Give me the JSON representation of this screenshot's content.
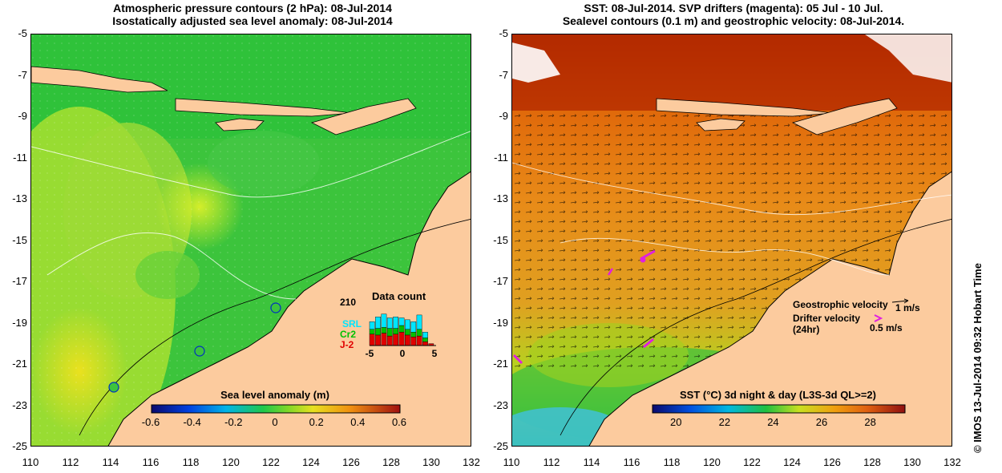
{
  "left_panel": {
    "title_line1": "Atmospheric pressure contours (2 hPa): 08-Jul-2014",
    "title_line2": "Isostatically adjusted sea level anomaly: 08-Jul-2014",
    "colorbar": {
      "label": "Sea level anomaly (m)",
      "ticks": [
        "-0.6",
        "-0.4",
        "-0.2",
        "0",
        "0.2",
        "0.4",
        "0.6"
      ],
      "range": [
        -0.6,
        0.6
      ]
    },
    "data_count": {
      "title": "Data count",
      "max_label": "210",
      "satellites": [
        {
          "name": "SRL",
          "color": "#00e5ff"
        },
        {
          "name": "Cr2",
          "color": "#00c000"
        },
        {
          "name": "J-2",
          "color": "#e00000"
        }
      ],
      "x_ticks": [
        "-5",
        "0",
        "5"
      ],
      "days": [
        -5,
        -4,
        -3,
        -2,
        -1,
        0,
        1,
        2,
        3,
        4,
        5
      ],
      "srl": [
        40,
        60,
        70,
        55,
        60,
        40,
        50,
        55,
        75,
        30,
        0
      ],
      "cr2": [
        25,
        35,
        30,
        40,
        30,
        35,
        30,
        25,
        35,
        20,
        0
      ],
      "j2": [
        60,
        55,
        65,
        50,
        60,
        70,
        55,
        45,
        50,
        20,
        10
      ]
    }
  },
  "right_panel": {
    "title_line1": "SST: 08-Jul-2014. SVP drifters (magenta): 05 Jul - 10 Jul.",
    "title_line2": "Sealevel contours (0.1 m) and geostrophic velocity: 08-Jul-2014.",
    "colorbar": {
      "label": "SST (°C) 3d night & day (L3S-3d QL>=2)",
      "ticks": [
        "20",
        "22",
        "24",
        "26",
        "28"
      ],
      "range": [
        19,
        29.4
      ]
    },
    "legend": {
      "geostrophic_label": "Geostrophic velocity",
      "geostrophic_scale": "1 m/s",
      "drifter_label": "Drifter velocity",
      "drifter_period": "(24hr)",
      "drifter_scale": "0.5 m/s"
    },
    "credit": "© IMOS 13-Jul-2014 09:32 Hobart Time"
  },
  "axes": {
    "lon_ticks": [
      "110",
      "112",
      "114",
      "116",
      "118",
      "120",
      "122",
      "124",
      "126",
      "128",
      "130",
      "132"
    ],
    "lat_ticks": [
      "-5",
      "-7",
      "-9",
      "-11",
      "-13",
      "-15",
      "-17",
      "-19",
      "-21",
      "-23",
      "-25"
    ],
    "lon_range": [
      110,
      132
    ],
    "lat_range": [
      -25,
      -5
    ]
  },
  "colors": {
    "land": "#fccb9e",
    "coast": "#000000"
  }
}
